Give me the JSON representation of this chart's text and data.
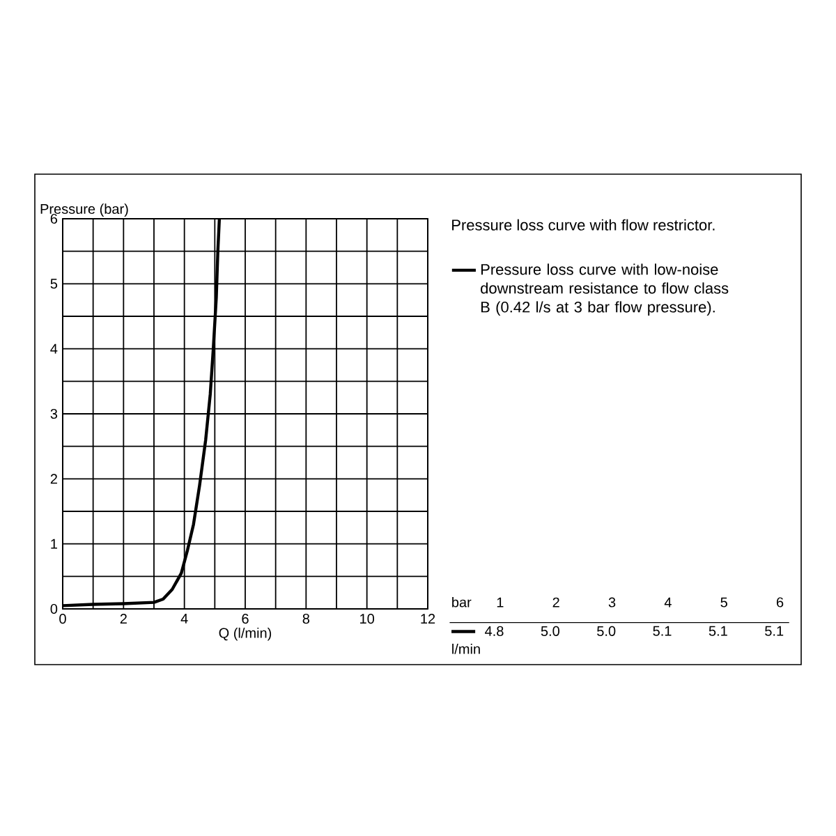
{
  "chart_data": {
    "type": "line",
    "title": "Pressure loss curve with flow restrictor.",
    "xlabel": "Q (l/min)",
    "ylabel": "Pressure (bar)",
    "x": [
      0,
      1,
      2,
      3,
      3.3,
      3.6,
      3.9,
      4.1,
      4.3,
      4.5,
      4.7,
      4.85,
      4.95,
      5.05,
      5.1,
      5.15
    ],
    "series": [
      {
        "name": "Pressure loss curve with low-noise downstream resistance to flow class B (0.42 l/s at 3 bar flow pressure).",
        "color": "#000000",
        "values": [
          0.05,
          0.07,
          0.08,
          0.1,
          0.15,
          0.3,
          0.55,
          0.9,
          1.3,
          1.9,
          2.6,
          3.3,
          4.0,
          4.8,
          5.5,
          6.0
        ]
      }
    ],
    "xlim": [
      0,
      12
    ],
    "ylim": [
      0,
      6
    ],
    "xticks": [
      0,
      2,
      4,
      6,
      8,
      10,
      12
    ],
    "yticks": [
      0,
      1,
      2,
      3,
      4,
      5,
      6
    ],
    "grid": true,
    "legend": "top right",
    "marker": "none",
    "line_style": "solid",
    "annotations": [
      "bar",
      "1",
      "2",
      "3",
      "4",
      "5",
      "6",
      "4.8",
      "5.0",
      "5.0",
      "5.1",
      "5.1",
      "5.1",
      "l/min"
    ]
  }
}
